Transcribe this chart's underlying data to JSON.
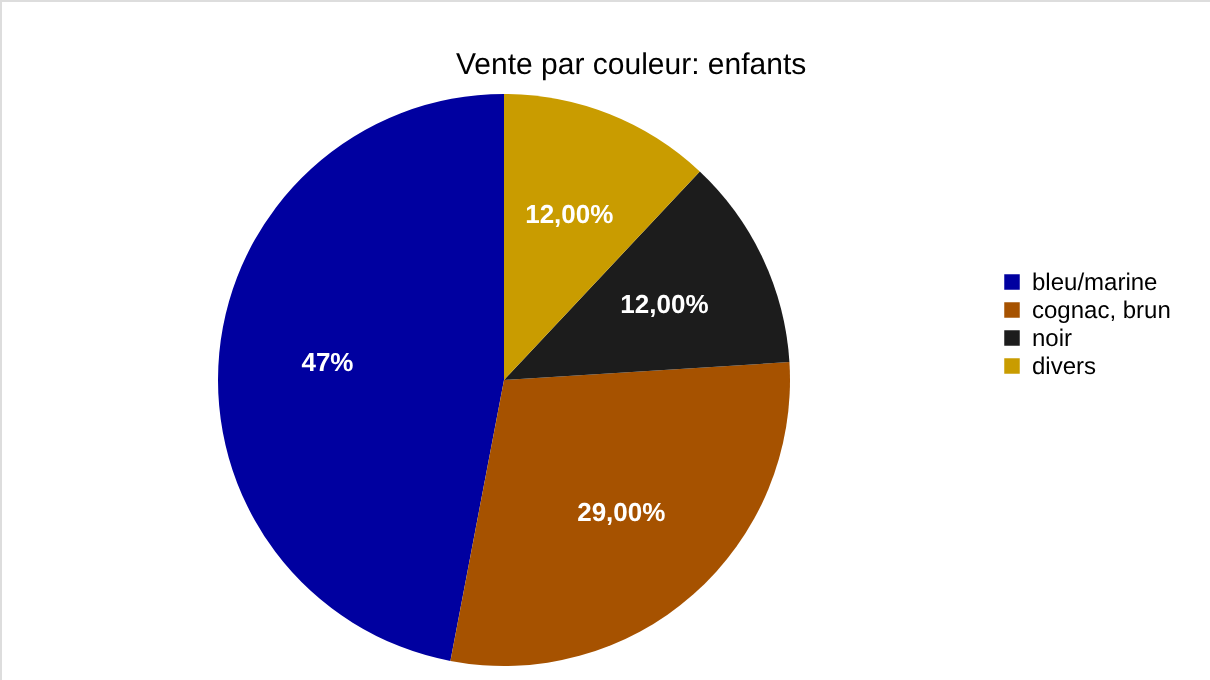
{
  "chart_data": {
    "type": "pie",
    "title": "Vente par couleur: enfants",
    "categories": [
      "bleu/marine",
      "cognac, brun",
      "noir",
      "divers"
    ],
    "values": [
      47,
      29,
      12,
      12
    ],
    "colors": [
      "#0000a0",
      "#a65200",
      "#1c1c1c",
      "#c99c00"
    ],
    "value_labels": [
      "47%",
      "29,00%",
      "12,00%",
      "12,00%"
    ],
    "legend": "right"
  }
}
